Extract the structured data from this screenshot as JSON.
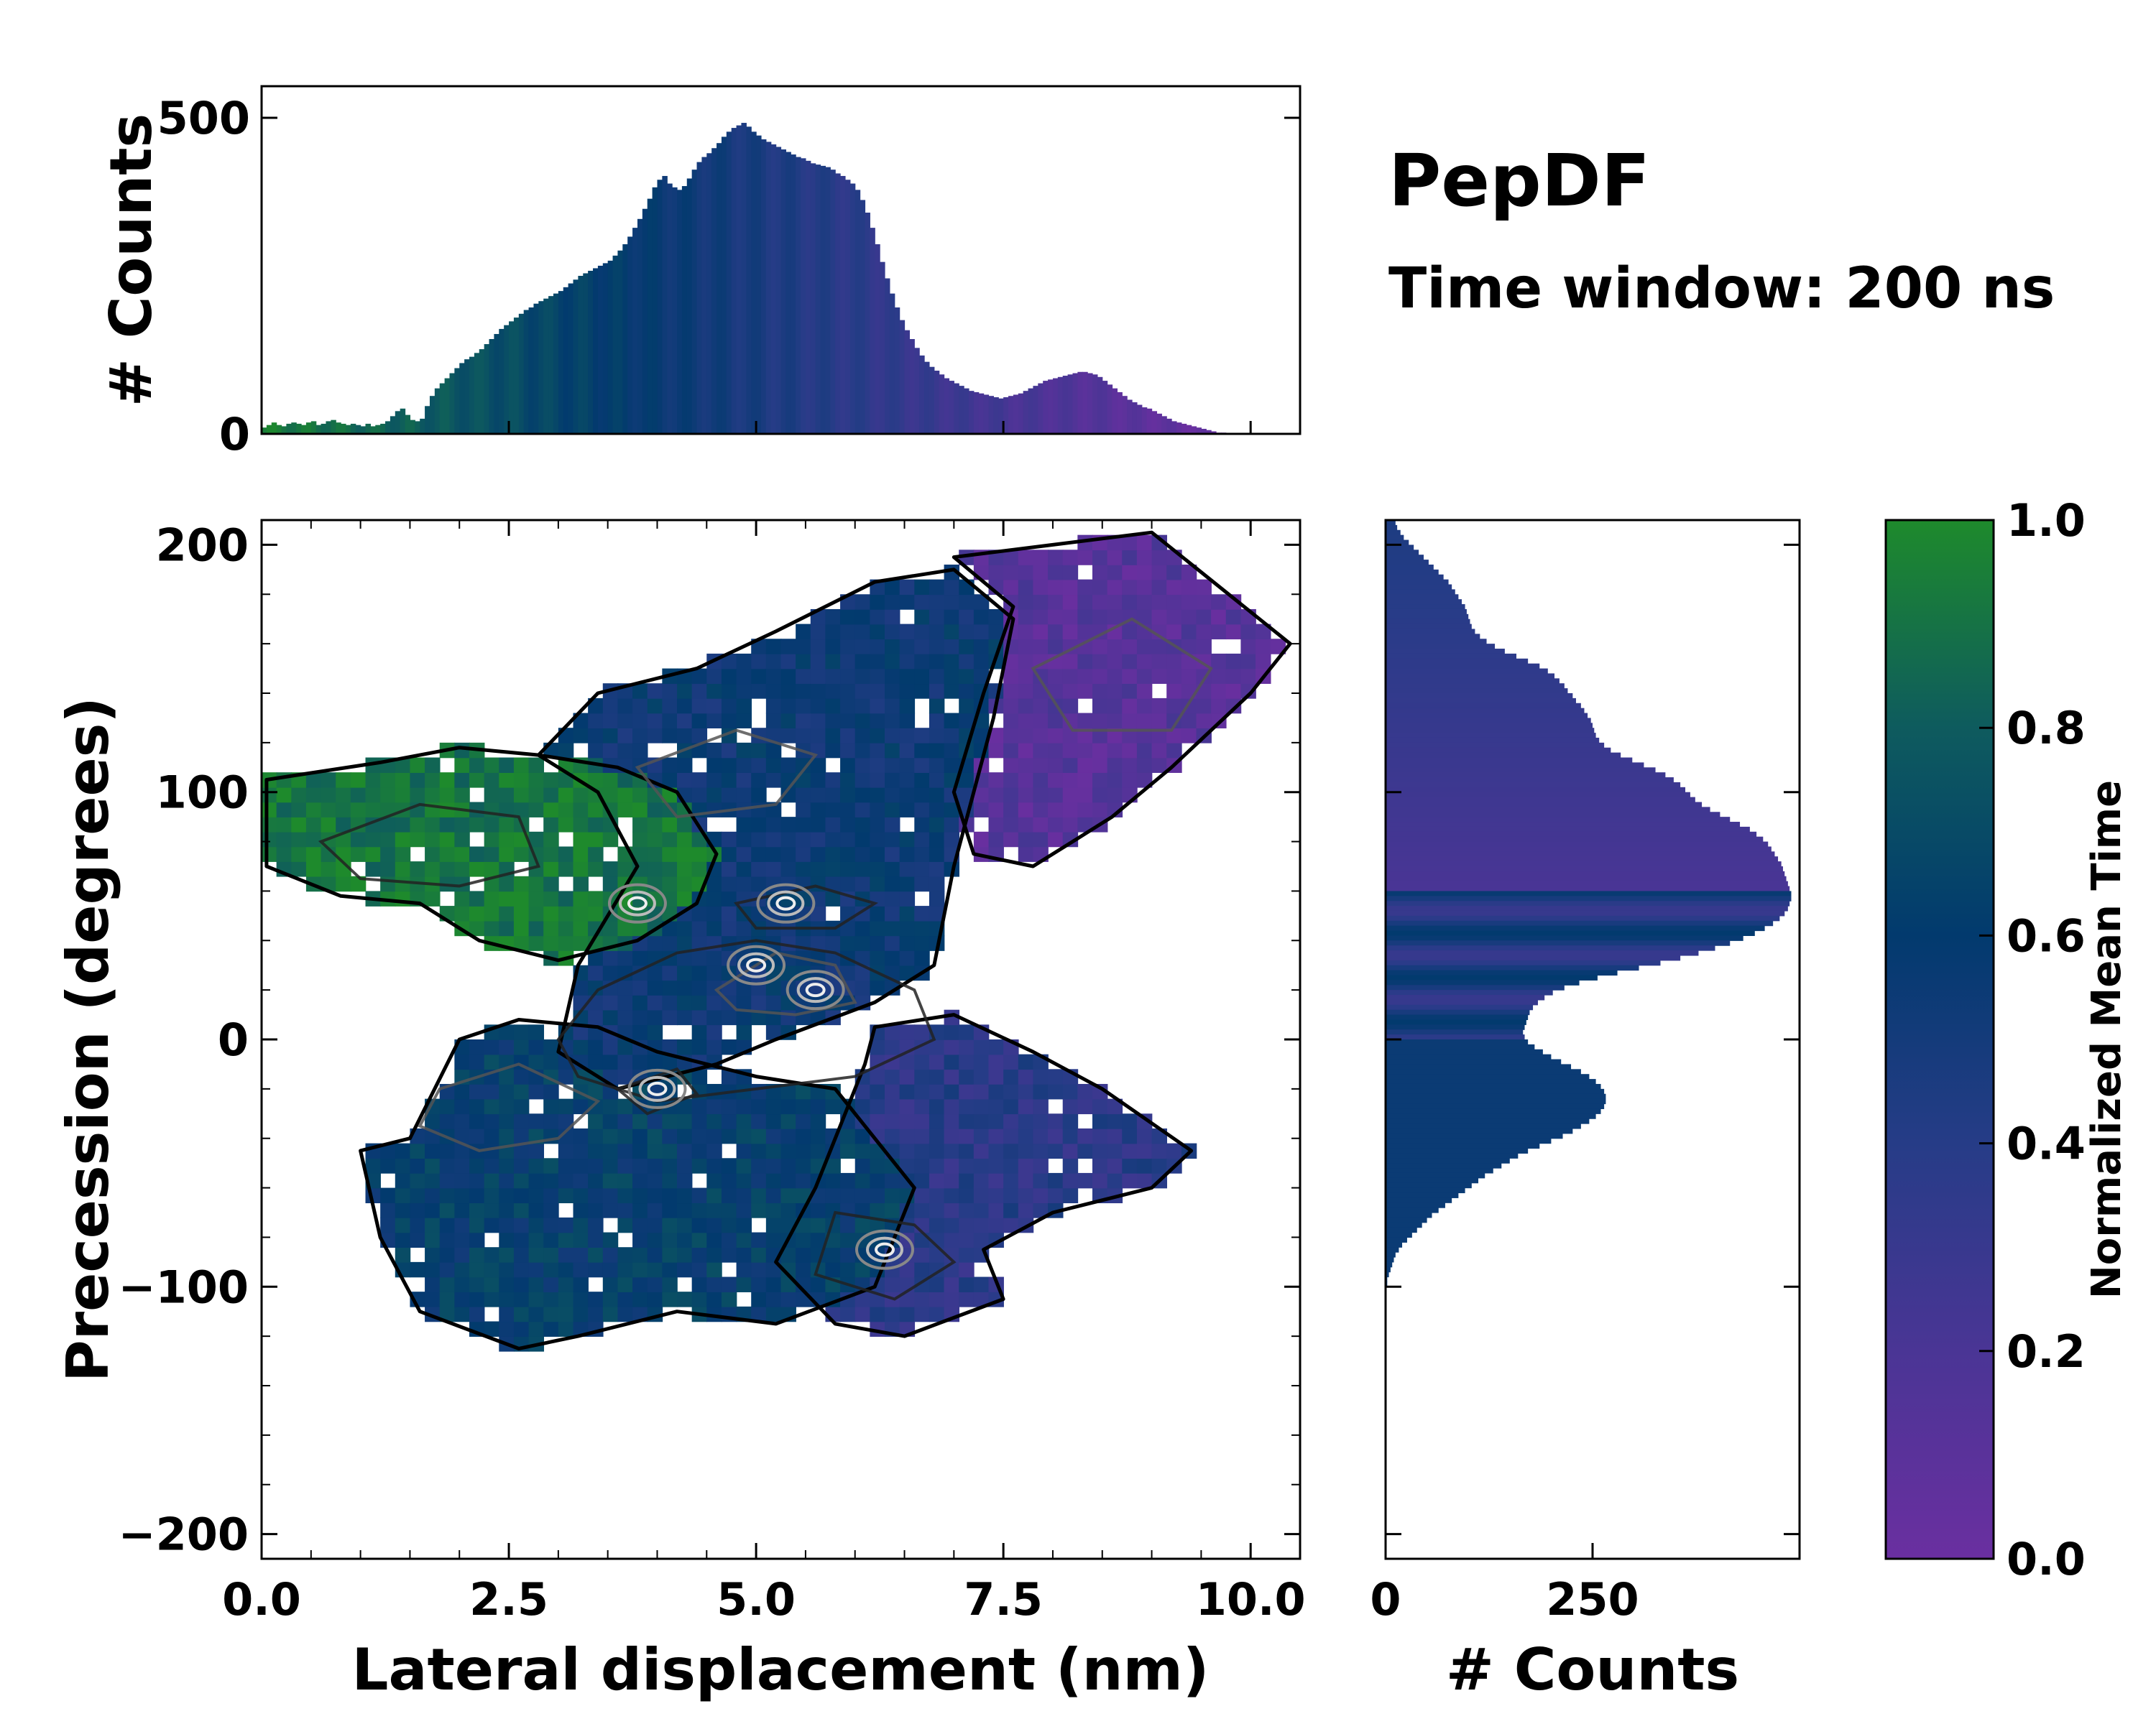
{
  "chart_data": {
    "type": "heatmap",
    "title": "PepDF",
    "subtitle": "Time window: 200 ns",
    "main": {
      "xlabel": "Lateral displacement (nm)",
      "ylabel": "Precession (degrees)",
      "xlim": [
        0,
        10.5
      ],
      "ylim": [
        -210,
        210
      ],
      "xticks": [
        0,
        2.5,
        5,
        7.5,
        10
      ],
      "xtick_labels": [
        "0.0",
        "2.5",
        "5.0",
        "7.5",
        "10.0"
      ],
      "yticks": [
        -200,
        -100,
        0,
        100,
        200
      ],
      "ytick_labels": [
        "−200",
        "−100",
        "0",
        "100",
        "200"
      ],
      "regions": [
        {
          "name": "upper-left-green",
          "points": [
            [
              0.05,
              105
            ],
            [
              1.2,
              112
            ],
            [
              2.0,
              118
            ],
            [
              2.8,
              115
            ],
            [
              3.6,
              110
            ],
            [
              4.2,
              100
            ],
            [
              4.6,
              75
            ],
            [
              4.4,
              55
            ],
            [
              3.8,
              40
            ],
            [
              3.0,
              32
            ],
            [
              2.2,
              40
            ],
            [
              1.6,
              55
            ],
            [
              0.8,
              58
            ],
            [
              0.05,
              70
            ]
          ],
          "value": 0.92
        },
        {
          "name": "center-mixed",
          "points": [
            [
              2.8,
              115
            ],
            [
              3.4,
              140
            ],
            [
              4.4,
              150
            ],
            [
              5.2,
              165
            ],
            [
              6.2,
              185
            ],
            [
              7.0,
              190
            ],
            [
              7.6,
              170
            ],
            [
              7.4,
              130
            ],
            [
              7.2,
              100
            ],
            [
              7.0,
              70
            ],
            [
              6.8,
              30
            ],
            [
              6.2,
              15
            ],
            [
              5.2,
              0
            ],
            [
              4.6,
              -10
            ],
            [
              3.6,
              -20
            ],
            [
              3.0,
              -5
            ],
            [
              3.2,
              30
            ],
            [
              3.8,
              70
            ],
            [
              3.4,
              100
            ]
          ],
          "value": 0.55
        },
        {
          "name": "upper-right-purple",
          "points": [
            [
              7.0,
              195
            ],
            [
              8.0,
              200
            ],
            [
              9.0,
              205
            ],
            [
              10.4,
              160
            ],
            [
              10.0,
              140
            ],
            [
              9.2,
              110
            ],
            [
              8.6,
              90
            ],
            [
              8.2,
              80
            ],
            [
              7.8,
              70
            ],
            [
              7.2,
              75
            ],
            [
              7.0,
              100
            ],
            [
              7.3,
              140
            ],
            [
              7.6,
              175
            ]
          ],
          "value": 0.12
        },
        {
          "name": "lower-teal",
          "points": [
            [
              1.5,
              -40
            ],
            [
              2.0,
              0
            ],
            [
              2.6,
              8
            ],
            [
              3.4,
              5
            ],
            [
              4.0,
              -5
            ],
            [
              5.0,
              -15
            ],
            [
              5.8,
              -20
            ],
            [
              6.2,
              -40
            ],
            [
              6.6,
              -60
            ],
            [
              6.2,
              -100
            ],
            [
              5.2,
              -115
            ],
            [
              4.2,
              -110
            ],
            [
              3.2,
              -120
            ],
            [
              2.6,
              -125
            ],
            [
              1.6,
              -110
            ],
            [
              1.2,
              -80
            ],
            [
              1.0,
              -45
            ]
          ],
          "value": 0.62
        },
        {
          "name": "lower-right-blue",
          "points": [
            [
              6.2,
              5
            ],
            [
              7.0,
              10
            ],
            [
              7.8,
              -5
            ],
            [
              8.5,
              -20
            ],
            [
              9.4,
              -45
            ],
            [
              9.0,
              -60
            ],
            [
              8.0,
              -70
            ],
            [
              7.3,
              -85
            ],
            [
              7.5,
              -105
            ],
            [
              6.5,
              -120
            ],
            [
              5.8,
              -115
            ],
            [
              5.2,
              -90
            ],
            [
              5.6,
              -60
            ],
            [
              5.9,
              -30
            ],
            [
              6.1,
              -10
            ]
          ],
          "value": 0.38
        }
      ],
      "contours": [
        [
          [
            3.4,
            20
          ],
          [
            4.2,
            35
          ],
          [
            5.0,
            40
          ],
          [
            5.8,
            35
          ],
          [
            6.6,
            20
          ],
          [
            6.8,
            0
          ],
          [
            6.0,
            -15
          ],
          [
            5.0,
            -20
          ],
          [
            4.0,
            -25
          ],
          [
            3.2,
            -15
          ],
          [
            3.0,
            0
          ]
        ],
        [
          [
            4.6,
            20
          ],
          [
            5.2,
            35
          ],
          [
            5.8,
            30
          ],
          [
            6.0,
            15
          ],
          [
            5.4,
            10
          ],
          [
            4.8,
            12
          ]
        ],
        [
          [
            3.6,
            -20
          ],
          [
            4.2,
            -12
          ],
          [
            4.4,
            -22
          ],
          [
            3.9,
            -30
          ]
        ],
        [
          [
            1.8,
            -20
          ],
          [
            2.6,
            -10
          ],
          [
            3.4,
            -25
          ],
          [
            3.0,
            -40
          ],
          [
            2.2,
            -45
          ],
          [
            1.6,
            -35
          ]
        ],
        [
          [
            5.8,
            -70
          ],
          [
            6.6,
            -75
          ],
          [
            7.0,
            -90
          ],
          [
            6.4,
            -105
          ],
          [
            5.6,
            -95
          ]
        ],
        [
          [
            7.8,
            150
          ],
          [
            8.8,
            170
          ],
          [
            9.6,
            150
          ],
          [
            9.2,
            125
          ],
          [
            8.2,
            125
          ]
        ],
        [
          [
            0.6,
            80
          ],
          [
            1.6,
            95
          ],
          [
            2.6,
            90
          ],
          [
            2.8,
            70
          ],
          [
            2.0,
            62
          ],
          [
            1.0,
            65
          ]
        ],
        [
          [
            3.8,
            110
          ],
          [
            4.8,
            125
          ],
          [
            5.6,
            115
          ],
          [
            5.2,
            95
          ],
          [
            4.2,
            90
          ]
        ],
        [
          [
            4.8,
            55
          ],
          [
            5.6,
            62
          ],
          [
            6.2,
            55
          ],
          [
            5.8,
            45
          ],
          [
            5.0,
            45
          ]
        ]
      ],
      "hot_spots": [
        [
          5.0,
          30
        ],
        [
          5.6,
          20
        ],
        [
          4.0,
          -20
        ],
        [
          5.3,
          55
        ],
        [
          3.8,
          55
        ],
        [
          6.3,
          -85
        ]
      ]
    },
    "top_histogram": {
      "ylabel": "# Counts",
      "ylim": [
        0,
        550
      ],
      "yticks": [
        0,
        500
      ],
      "ytick_labels": [
        "0",
        "500"
      ],
      "bin_start": 0.0,
      "bin_width": 0.05,
      "counts": [
        10,
        14,
        18,
        14,
        12,
        16,
        18,
        16,
        14,
        18,
        20,
        14,
        16,
        20,
        22,
        18,
        16,
        14,
        16,
        14,
        12,
        16,
        12,
        14,
        16,
        20,
        28,
        36,
        40,
        30,
        22,
        20,
        24,
        44,
        60,
        72,
        80,
        88,
        96,
        104,
        112,
        118,
        122,
        128,
        134,
        142,
        150,
        158,
        166,
        172,
        178,
        184,
        190,
        196,
        200,
        206,
        210,
        214,
        218,
        222,
        226,
        232,
        238,
        244,
        250,
        254,
        258,
        262,
        266,
        270,
        274,
        282,
        290,
        300,
        312,
        326,
        340,
        356,
        372,
        390,
        402,
        408,
        396,
        390,
        386,
        392,
        404,
        418,
        430,
        438,
        444,
        452,
        460,
        470,
        478,
        484,
        488,
        492,
        486,
        478,
        472,
        466,
        462,
        458,
        454,
        450,
        446,
        442,
        438,
        436,
        432,
        428,
        426,
        424,
        422,
        418,
        412,
        408,
        402,
        396,
        386,
        370,
        350,
        326,
        300,
        272,
        246,
        222,
        200,
        180,
        164,
        150,
        136,
        124,
        114,
        106,
        100,
        94,
        88,
        84,
        80,
        76,
        72,
        68,
        66,
        64,
        62,
        60,
        58,
        56,
        58,
        60,
        62,
        64,
        68,
        72,
        76,
        80,
        84,
        86,
        88,
        90,
        92,
        94,
        96,
        98,
        98,
        96,
        94,
        90,
        84,
        78,
        72,
        66,
        60,
        54,
        50,
        46,
        42,
        40,
        36,
        32,
        28,
        24,
        20,
        18,
        16,
        14,
        12,
        10,
        8,
        6,
        4,
        2,
        2,
        0
      ],
      "xlim": [
        0,
        10.5
      ]
    },
    "right_histogram": {
      "xlabel": "# Counts",
      "xlim": [
        0,
        500
      ],
      "xticks": [
        0,
        250
      ],
      "xtick_labels": [
        "0",
        "250"
      ],
      "bin_start": 210,
      "bin_width": -2,
      "counts": [
        12,
        14,
        18,
        22,
        28,
        34,
        40,
        46,
        52,
        58,
        64,
        70,
        76,
        80,
        84,
        88,
        92,
        96,
        98,
        100,
        102,
        104,
        108,
        114,
        122,
        132,
        144,
        158,
        172,
        186,
        196,
        204,
        210,
        216,
        220,
        226,
        230,
        236,
        240,
        244,
        248,
        250,
        252,
        254,
        258,
        264,
        272,
        284,
        298,
        312,
        326,
        338,
        348,
        356,
        362,
        368,
        374,
        382,
        392,
        404,
        416,
        428,
        440,
        448,
        456,
        462,
        466,
        470,
        474,
        478,
        480,
        482,
        484,
        486,
        488,
        490,
        490,
        488,
        486,
        482,
        476,
        468,
        458,
        446,
        432,
        416,
        398,
        378,
        356,
        332,
        306,
        280,
        256,
        234,
        216,
        202,
        192,
        184,
        178,
        174,
        172,
        170,
        168,
        166,
        168,
        172,
        180,
        190,
        200,
        212,
        224,
        236,
        246,
        254,
        260,
        264,
        266,
        266,
        264,
        260,
        254,
        246,
        236,
        226,
        214,
        200,
        186,
        172,
        160,
        150,
        140,
        130,
        120,
        112,
        104,
        96,
        88,
        80,
        72,
        64,
        56,
        50,
        44,
        38,
        32,
        26,
        20,
        16,
        12,
        10,
        8,
        6,
        4,
        2,
        2,
        0,
        0,
        0,
        0,
        0,
        0,
        0,
        0,
        0,
        0,
        0,
        0,
        0,
        0,
        0,
        0,
        0,
        0,
        0,
        0,
        0,
        0,
        0,
        0,
        0,
        0,
        0,
        0,
        0,
        0,
        0,
        0,
        0,
        0,
        0,
        0,
        0,
        0,
        0,
        0,
        0,
        0,
        0,
        0,
        0,
        0,
        0,
        0,
        0,
        0,
        0,
        0
      ],
      "ylim": [
        -210,
        210
      ]
    },
    "colorbar": {
      "label": "Normalized Mean Time",
      "range": [
        0,
        1
      ],
      "ticks": [
        0.0,
        0.2,
        0.4,
        0.6,
        0.8,
        1.0
      ],
      "tick_labels": [
        "0.0",
        "0.2",
        "0.4",
        "0.6",
        "0.8",
        "1.0"
      ],
      "colors": [
        "#6a2fa0",
        "#4a3595",
        "#263c87",
        "#023a6e",
        "#0e5b5e",
        "#1e8a2c"
      ]
    }
  }
}
